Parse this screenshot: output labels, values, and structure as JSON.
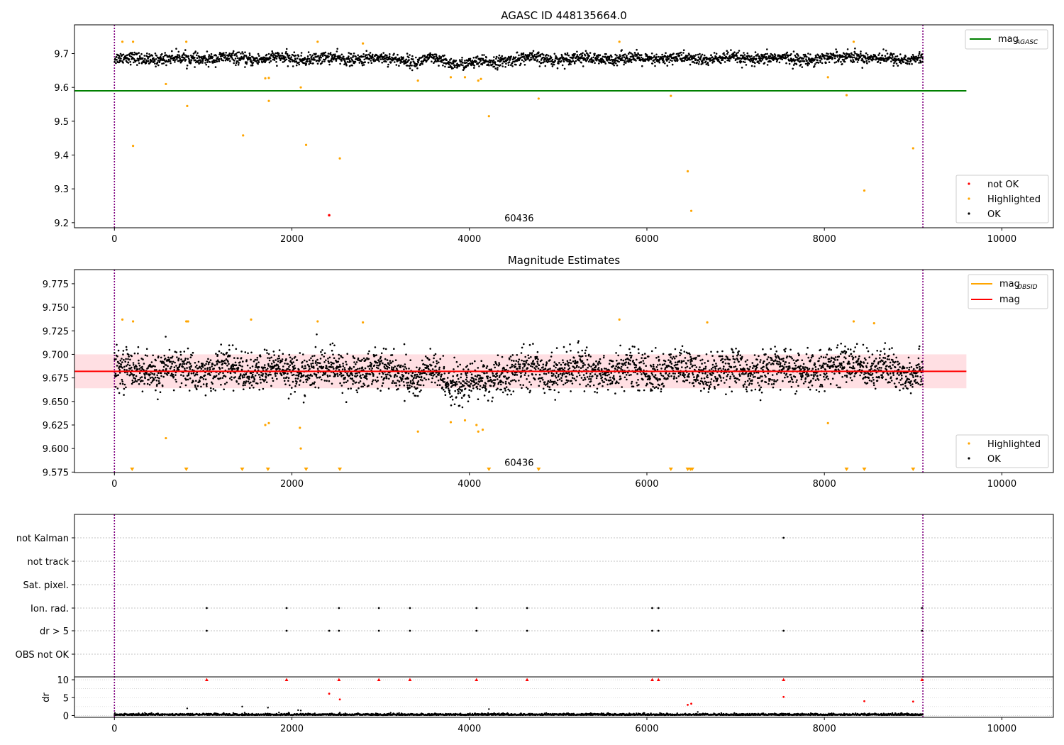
{
  "chart_data": [
    {
      "type": "scatter",
      "title": "AGASC ID 448135664.0",
      "xlim": [
        -450,
        10580
      ],
      "ylim": [
        9.185,
        9.785
      ],
      "xticks": [
        0,
        2000,
        4000,
        6000,
        8000,
        10000
      ],
      "yticks": [
        9.2,
        9.3,
        9.4,
        9.5,
        9.6,
        9.7
      ],
      "vlines": [
        0,
        9110
      ],
      "annotation": {
        "text": "60436",
        "x": 4560,
        "y": 9.2
      },
      "legend_top": [
        {
          "label": "mag",
          "sub": "AGASC",
          "color": "#008000"
        }
      ],
      "legend_bottom": [
        {
          "label": "not OK",
          "color": "#ff0000"
        },
        {
          "label": "Highlighted",
          "color": "#ffa500"
        },
        {
          "label": "OK",
          "color": "#000000"
        }
      ],
      "hline": {
        "name": "mag_AGASC",
        "y": 9.59,
        "x": [
          -450,
          9600
        ],
        "color": "#008000"
      },
      "ok_band": {
        "x": [
          0,
          9110
        ],
        "center": 9.685,
        "spread": 0.016,
        "dips": [
          [
            4000,
            -0.015,
            350
          ],
          [
            3400,
            -0.012,
            80
          ],
          [
            8300,
            0.01,
            150
          ]
        ]
      },
      "highlighted": [
        [
          90,
          9.735
        ],
        [
          210,
          9.735
        ],
        [
          580,
          9.61
        ],
        [
          810,
          9.735
        ],
        [
          820,
          9.545
        ],
        [
          1450,
          9.458
        ],
        [
          1700,
          9.627
        ],
        [
          1740,
          9.628
        ],
        [
          1740,
          9.56
        ],
        [
          2100,
          9.6
        ],
        [
          2160,
          9.43
        ],
        [
          210,
          9.427
        ],
        [
          2540,
          9.39
        ],
        [
          2290,
          9.735
        ],
        [
          2800,
          9.73
        ],
        [
          3420,
          9.62
        ],
        [
          3790,
          9.63
        ],
        [
          3950,
          9.63
        ],
        [
          4100,
          9.62
        ],
        [
          4130,
          9.625
        ],
        [
          4220,
          9.515
        ],
        [
          4780,
          9.567
        ],
        [
          5690,
          9.735
        ],
        [
          6270,
          9.575
        ],
        [
          6460,
          9.352
        ],
        [
          6500,
          9.235
        ],
        [
          8040,
          9.63
        ],
        [
          8250,
          9.577
        ],
        [
          8330,
          9.735
        ],
        [
          8450,
          9.295
        ],
        [
          9000,
          9.42
        ]
      ],
      "not_ok": [
        [
          2420,
          9.222
        ]
      ]
    },
    {
      "type": "scatter",
      "title": "Magnitude Estimates",
      "xlim": [
        -450,
        10580
      ],
      "ylim": [
        9.5745,
        9.79
      ],
      "xticks": [
        0,
        2000,
        4000,
        6000,
        8000,
        10000
      ],
      "yticks": [
        9.575,
        9.6,
        9.625,
        9.65,
        9.675,
        9.7,
        9.725,
        9.75,
        9.775
      ],
      "vlines": [
        0,
        9110
      ],
      "annotation": {
        "text": "60436",
        "x": 4560,
        "y": 9.577
      },
      "legend_top": [
        {
          "label": "mag",
          "sub": "OBSID",
          "color": "#ffa500"
        },
        {
          "label": "mag",
          "sub": "",
          "color": "#ff0000"
        }
      ],
      "legend_bottom": [
        {
          "label": "Highlighted",
          "color": "#ffa500"
        },
        {
          "label": "OK",
          "color": "#000000"
        }
      ],
      "mag_line": {
        "y": 9.682,
        "band": [
          9.664,
          9.7
        ],
        "x": [
          -450,
          9600
        ],
        "color": "#ff0000"
      },
      "ok_band": {
        "x": [
          0,
          9110
        ],
        "center": 9.683,
        "spread": 0.018,
        "dips": [
          [
            4000,
            -0.015,
            350
          ],
          [
            3400,
            -0.012,
            80
          ],
          [
            8300,
            0.01,
            150
          ]
        ]
      },
      "highlighted": [
        [
          90,
          9.737
        ],
        [
          210,
          9.735
        ],
        [
          580,
          9.611
        ],
        [
          810,
          9.735
        ],
        [
          830,
          9.735
        ],
        [
          1540,
          9.737
        ],
        [
          1700,
          9.625
        ],
        [
          1740,
          9.627
        ],
        [
          2090,
          9.622
        ],
        [
          2100,
          9.6
        ],
        [
          2290,
          9.735
        ],
        [
          2800,
          9.734
        ],
        [
          3420,
          9.618
        ],
        [
          3790,
          9.628
        ],
        [
          3950,
          9.63
        ],
        [
          4080,
          9.625
        ],
        [
          4100,
          9.618
        ],
        [
          4150,
          9.62
        ],
        [
          5690,
          9.737
        ],
        [
          6680,
          9.734
        ],
        [
          8040,
          9.627
        ],
        [
          8330,
          9.735
        ],
        [
          8560,
          9.733
        ]
      ],
      "lower_limits": [
        200,
        810,
        1440,
        1730,
        2160,
        2540,
        4220,
        4780,
        6270,
        6460,
        6490,
        6510,
        8250,
        8450,
        9000
      ]
    },
    {
      "type": "scatter",
      "xlim": [
        -450,
        10580
      ],
      "xticks": [
        0,
        2000,
        4000,
        6000,
        8000,
        10000
      ],
      "vlines": [
        0,
        9110
      ],
      "flag_labels": [
        "not Kalman",
        "not track",
        "Sat. pixel.",
        "Ion. rad.",
        "dr > 5",
        "OBS not OK"
      ],
      "flags": {
        "not Kalman": [
          7540
        ],
        "not track": [],
        "Sat. pixel.": [],
        "Ion. rad.": [
          1040,
          1940,
          2530,
          2980,
          3330,
          4080,
          4650,
          6060,
          6130,
          9100
        ],
        "dr > 5": [
          1040,
          1940,
          2420,
          2530,
          2980,
          3330,
          4080,
          4650,
          6060,
          6130,
          7540,
          9100
        ],
        "OBS not OK": []
      },
      "ylabel": "dr",
      "ylim": [
        -0.5,
        10.8
      ],
      "yticks": [
        0,
        5,
        10
      ],
      "dr_black": {
        "x": [
          0,
          9110
        ],
        "typical": 0.3,
        "outliers": [
          [
            820,
            2.0
          ],
          [
            1440,
            2.5
          ],
          [
            1730,
            2.2
          ],
          [
            2070,
            1.5
          ],
          [
            2100,
            1.4
          ],
          [
            2540,
            0.8
          ],
          [
            4220,
            1.8
          ]
        ]
      },
      "dr_red": [
        [
          1040,
          10
        ],
        [
          1940,
          10
        ],
        [
          2530,
          10
        ],
        [
          2980,
          10
        ],
        [
          3330,
          10
        ],
        [
          4080,
          10
        ],
        [
          4650,
          10
        ],
        [
          6060,
          10
        ],
        [
          6130,
          10
        ],
        [
          7540,
          10
        ],
        [
          9100,
          10
        ],
        [
          2420,
          6.1
        ],
        [
          2540,
          4.5
        ],
        [
          6460,
          3.0
        ],
        [
          6500,
          3.3
        ],
        [
          7540,
          5.2
        ],
        [
          8450,
          4.0
        ],
        [
          9000,
          3.9
        ]
      ]
    }
  ]
}
